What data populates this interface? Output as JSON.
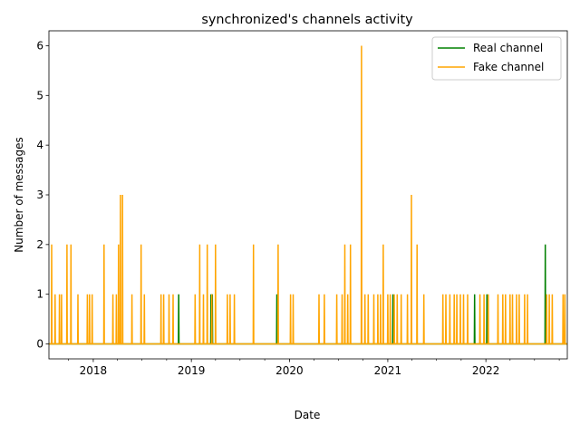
{
  "chart_data": {
    "type": "line",
    "title": "synchronized's channels activity",
    "xlabel": "Date",
    "ylabel": "Number of messages",
    "xlim": [
      "2017-07-20",
      "2022-10-31"
    ],
    "ylim": [
      -0.3,
      6.3
    ],
    "x_ticks": [
      "2018",
      "2019",
      "2020",
      "2021",
      "2022"
    ],
    "y_ticks": [
      "0",
      "1",
      "2",
      "3",
      "4",
      "5",
      "6"
    ],
    "grid": false,
    "legend_position": "top-right",
    "series": [
      {
        "name": "Real channel",
        "color": "#008000",
        "points": [
          [
            "2018-11-15",
            1
          ],
          [
            "2019-03-15",
            1
          ],
          [
            "2019-03-20",
            1
          ],
          [
            "2019-11-15",
            1
          ],
          [
            "2021-01-20",
            1
          ],
          [
            "2021-11-20",
            1
          ],
          [
            "2022-01-05",
            1
          ],
          [
            "2022-08-10",
            2
          ]
        ]
      },
      {
        "name": "Fake channel",
        "color": "#ffa500",
        "points": [
          [
            "2017-07-30",
            2
          ],
          [
            "2017-08-12",
            1
          ],
          [
            "2017-08-28",
            1
          ],
          [
            "2017-09-05",
            1
          ],
          [
            "2017-09-25",
            2
          ],
          [
            "2017-10-10",
            2
          ],
          [
            "2017-11-05",
            1
          ],
          [
            "2017-12-10",
            1
          ],
          [
            "2017-12-18",
            1
          ],
          [
            "2017-12-28",
            1
          ],
          [
            "2018-02-10",
            2
          ],
          [
            "2018-03-15",
            1
          ],
          [
            "2018-03-28",
            1
          ],
          [
            "2018-04-05",
            2
          ],
          [
            "2018-04-12",
            3
          ],
          [
            "2018-04-20",
            3
          ],
          [
            "2018-05-25",
            1
          ],
          [
            "2018-06-28",
            2
          ],
          [
            "2018-07-10",
            1
          ],
          [
            "2018-09-10",
            1
          ],
          [
            "2018-09-20",
            1
          ],
          [
            "2018-10-10",
            1
          ],
          [
            "2018-10-25",
            1
          ],
          [
            "2019-01-15",
            1
          ],
          [
            "2019-02-01",
            2
          ],
          [
            "2019-02-15",
            1
          ],
          [
            "2019-03-01",
            2
          ],
          [
            "2019-03-18",
            1
          ],
          [
            "2019-04-01",
            2
          ],
          [
            "2019-05-15",
            1
          ],
          [
            "2019-05-25",
            1
          ],
          [
            "2019-06-10",
            1
          ],
          [
            "2019-08-20",
            2
          ],
          [
            "2019-11-20",
            2
          ],
          [
            "2020-01-05",
            1
          ],
          [
            "2020-01-15",
            1
          ],
          [
            "2020-04-20",
            1
          ],
          [
            "2020-05-10",
            1
          ],
          [
            "2020-06-25",
            1
          ],
          [
            "2020-07-15",
            1
          ],
          [
            "2020-07-25",
            2
          ],
          [
            "2020-08-05",
            1
          ],
          [
            "2020-08-15",
            2
          ],
          [
            "2020-09-25",
            6
          ],
          [
            "2020-10-08",
            1
          ],
          [
            "2020-10-20",
            1
          ],
          [
            "2020-11-10",
            1
          ],
          [
            "2020-11-25",
            1
          ],
          [
            "2020-12-05",
            1
          ],
          [
            "2020-12-15",
            2
          ],
          [
            "2021-01-01",
            1
          ],
          [
            "2021-01-10",
            1
          ],
          [
            "2021-01-25",
            1
          ],
          [
            "2021-02-05",
            1
          ],
          [
            "2021-02-20",
            1
          ],
          [
            "2021-03-15",
            1
          ],
          [
            "2021-03-30",
            3
          ],
          [
            "2021-04-20",
            2
          ],
          [
            "2021-05-15",
            1
          ],
          [
            "2021-07-25",
            1
          ],
          [
            "2021-08-05",
            1
          ],
          [
            "2021-08-20",
            1
          ],
          [
            "2021-09-05",
            1
          ],
          [
            "2021-09-15",
            1
          ],
          [
            "2021-09-28",
            1
          ],
          [
            "2021-10-10",
            1
          ],
          [
            "2021-10-25",
            1
          ],
          [
            "2021-12-10",
            1
          ],
          [
            "2021-12-25",
            1
          ],
          [
            "2022-01-10",
            1
          ],
          [
            "2022-02-15",
            1
          ],
          [
            "2022-03-05",
            1
          ],
          [
            "2022-03-15",
            1
          ],
          [
            "2022-04-01",
            1
          ],
          [
            "2022-04-10",
            1
          ],
          [
            "2022-04-25",
            1
          ],
          [
            "2022-05-05",
            1
          ],
          [
            "2022-05-25",
            1
          ],
          [
            "2022-06-05",
            1
          ],
          [
            "2022-08-15",
            1
          ],
          [
            "2022-08-25",
            1
          ],
          [
            "2022-09-05",
            1
          ],
          [
            "2022-10-15",
            1
          ],
          [
            "2022-10-22",
            1
          ]
        ]
      }
    ]
  }
}
